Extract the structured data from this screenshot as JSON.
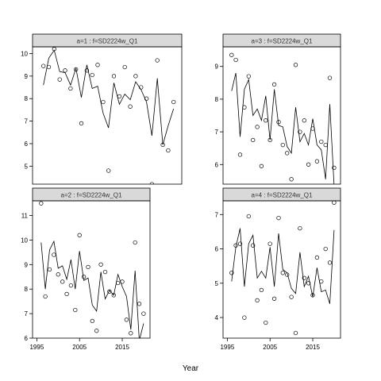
{
  "chart_data": {
    "type": "scatter",
    "xlabel": "Year",
    "xticks": [
      1995,
      2005,
      2015
    ],
    "xlim": [
      1994,
      2021.5
    ],
    "panels": [
      {
        "id": "a1",
        "strip": "a=1  :  f=SD2224w_Q1",
        "ylim": [
          4.2,
          10.3
        ],
        "yticks": [
          5,
          6,
          7,
          8,
          9,
          10
        ],
        "points": [
          [
            1996,
            9.45
          ],
          [
            1997,
            9.4
          ],
          [
            1998,
            10.2
          ],
          [
            1999,
            8.85
          ],
          [
            2000,
            9.25
          ],
          [
            2001,
            8.45
          ],
          [
            2002,
            9.3
          ],
          [
            2003,
            6.9
          ],
          [
            2004,
            9.25
          ],
          [
            2005,
            9.05
          ],
          [
            2006,
            9.5
          ],
          [
            2007,
            7.85
          ],
          [
            2008,
            4.8
          ],
          [
            2009,
            9.0
          ],
          [
            2010,
            8.1
          ],
          [
            2011,
            9.4
          ],
          [
            2012,
            7.65
          ],
          [
            2013,
            9.0
          ],
          [
            2014,
            8.5
          ],
          [
            2015,
            8.0
          ],
          [
            2016,
            4.2
          ],
          [
            2017,
            9.7
          ],
          [
            2018,
            5.95
          ],
          [
            2019,
            5.7
          ],
          [
            2020,
            7.85
          ]
        ],
        "fitted": [
          [
            1996,
            8.6
          ],
          [
            1997,
            9.8
          ],
          [
            1998,
            10.15
          ],
          [
            1999,
            9.2
          ],
          [
            2000,
            9.15
          ],
          [
            2001,
            8.6
          ],
          [
            2002,
            9.35
          ],
          [
            2003,
            8.05
          ],
          [
            2004,
            9.5
          ],
          [
            2005,
            8.45
          ],
          [
            2006,
            8.55
          ],
          [
            2007,
            7.35
          ],
          [
            2008,
            6.7
          ],
          [
            2009,
            8.7
          ],
          [
            2010,
            7.75
          ],
          [
            2011,
            8.2
          ],
          [
            2012,
            7.95
          ],
          [
            2013,
            8.75
          ],
          [
            2014,
            8.4
          ],
          [
            2015,
            7.85
          ],
          [
            2016,
            6.35
          ],
          [
            2017,
            8.9
          ],
          [
            2018,
            5.95
          ],
          [
            2019,
            6.8
          ],
          [
            2020,
            7.55
          ]
        ]
      },
      {
        "id": "a3",
        "strip": "a=3  :  f=SD2224w_Q1",
        "ylim": [
          5.4,
          9.6
        ],
        "yticks": [
          6,
          7,
          8,
          9
        ],
        "points": [
          [
            1996,
            9.35
          ],
          [
            1997,
            9.2
          ],
          [
            1998,
            6.3
          ],
          [
            1999,
            7.75
          ],
          [
            2000,
            8.7
          ],
          [
            2001,
            6.75
          ],
          [
            2002,
            7.15
          ],
          [
            2003,
            5.95
          ],
          [
            2004,
            7.35
          ],
          [
            2005,
            6.75
          ],
          [
            2006,
            8.45
          ],
          [
            2007,
            7.3
          ],
          [
            2008,
            6.6
          ],
          [
            2009,
            6.35
          ],
          [
            2010,
            5.55
          ],
          [
            2011,
            9.05
          ],
          [
            2012,
            7.0
          ],
          [
            2013,
            7.35
          ],
          [
            2014,
            6.0
          ],
          [
            2015,
            7.1
          ],
          [
            2016,
            6.1
          ],
          [
            2017,
            6.7
          ],
          [
            2018,
            6.6
          ],
          [
            2019,
            8.65
          ],
          [
            2020,
            5.9
          ]
        ],
        "fitted": [
          [
            1996,
            8.25
          ],
          [
            1997,
            8.8
          ],
          [
            1998,
            6.85
          ],
          [
            1999,
            8.3
          ],
          [
            2000,
            8.6
          ],
          [
            2001,
            7.5
          ],
          [
            2002,
            7.7
          ],
          [
            2003,
            7.35
          ],
          [
            2004,
            8.1
          ],
          [
            2005,
            6.75
          ],
          [
            2006,
            8.3
          ],
          [
            2007,
            7.2
          ],
          [
            2008,
            7.15
          ],
          [
            2009,
            6.55
          ],
          [
            2010,
            6.35
          ],
          [
            2011,
            7.75
          ],
          [
            2012,
            6.7
          ],
          [
            2013,
            6.95
          ],
          [
            2014,
            6.6
          ],
          [
            2015,
            7.4
          ],
          [
            2016,
            6.6
          ],
          [
            2017,
            6.45
          ],
          [
            2018,
            5.55
          ],
          [
            2019,
            7.85
          ],
          [
            2020,
            5.35
          ]
        ]
      },
      {
        "id": "a2",
        "strip": "a=2  :  f=SD2224w_Q1",
        "ylim": [
          6.0,
          11.6
        ],
        "yticks": [
          6,
          7,
          8,
          9,
          10,
          11
        ],
        "points": [
          [
            1996,
            11.5
          ],
          [
            1997,
            7.7
          ],
          [
            1998,
            8.8
          ],
          [
            1999,
            9.4
          ],
          [
            2000,
            8.6
          ],
          [
            2001,
            8.3
          ],
          [
            2002,
            7.8
          ],
          [
            2003,
            8.15
          ],
          [
            2004,
            7.15
          ],
          [
            2005,
            10.2
          ],
          [
            2006,
            8.5
          ],
          [
            2007,
            8.9
          ],
          [
            2008,
            6.7
          ],
          [
            2009,
            6.3
          ],
          [
            2010,
            9.0
          ],
          [
            2011,
            8.7
          ],
          [
            2012,
            7.9
          ],
          [
            2013,
            7.75
          ],
          [
            2014,
            8.25
          ],
          [
            2015,
            8.3
          ],
          [
            2016,
            6.75
          ],
          [
            2017,
            6.2
          ],
          [
            2018,
            9.9
          ],
          [
            2019,
            7.4
          ],
          [
            2020,
            7.0
          ]
        ],
        "fitted": [
          [
            1996,
            9.9
          ],
          [
            1997,
            8.0
          ],
          [
            1998,
            9.6
          ],
          [
            1999,
            9.95
          ],
          [
            2000,
            8.85
          ],
          [
            2001,
            8.95
          ],
          [
            2002,
            8.4
          ],
          [
            2003,
            9.2
          ],
          [
            2004,
            8.0
          ],
          [
            2005,
            9.55
          ],
          [
            2006,
            8.35
          ],
          [
            2007,
            8.45
          ],
          [
            2008,
            7.35
          ],
          [
            2009,
            7.1
          ],
          [
            2010,
            8.7
          ],
          [
            2011,
            7.6
          ],
          [
            2012,
            7.95
          ],
          [
            2013,
            7.75
          ],
          [
            2014,
            8.6
          ],
          [
            2015,
            8.1
          ],
          [
            2016,
            7.7
          ],
          [
            2017,
            6.35
          ],
          [
            2018,
            8.75
          ],
          [
            2019,
            5.9
          ],
          [
            2020,
            6.6
          ]
        ]
      },
      {
        "id": "a4",
        "strip": "a=4  :  f=SD2224w_Q1",
        "ylim": [
          3.4,
          7.4
        ],
        "yticks": [
          4,
          5,
          6,
          7
        ],
        "points": [
          [
            1996,
            5.3
          ],
          [
            1997,
            6.1
          ],
          [
            1998,
            6.15
          ],
          [
            1999,
            4.0
          ],
          [
            2000,
            6.95
          ],
          [
            2001,
            6.1
          ],
          [
            2002,
            4.5
          ],
          [
            2003,
            4.8
          ],
          [
            2004,
            3.85
          ],
          [
            2005,
            6.15
          ],
          [
            2006,
            4.55
          ],
          [
            2007,
            6.9
          ],
          [
            2008,
            5.3
          ],
          [
            2009,
            5.25
          ],
          [
            2010,
            4.6
          ],
          [
            2011,
            3.55
          ],
          [
            2012,
            6.6
          ],
          [
            2013,
            5.15
          ],
          [
            2014,
            5.0
          ],
          [
            2015,
            4.65
          ],
          [
            2016,
            5.75
          ],
          [
            2017,
            5.05
          ],
          [
            2018,
            6.0
          ],
          [
            2019,
            5.6
          ],
          [
            2020,
            7.35
          ]
        ],
        "fitted": [
          [
            1996,
            5.05
          ],
          [
            1997,
            6.05
          ],
          [
            1998,
            6.6
          ],
          [
            1999,
            4.9
          ],
          [
            2000,
            6.15
          ],
          [
            2001,
            6.4
          ],
          [
            2002,
            5.15
          ],
          [
            2003,
            5.35
          ],
          [
            2004,
            5.15
          ],
          [
            2005,
            6.05
          ],
          [
            2006,
            4.9
          ],
          [
            2007,
            6.45
          ],
          [
            2008,
            5.4
          ],
          [
            2009,
            5.3
          ],
          [
            2010,
            4.85
          ],
          [
            2011,
            4.7
          ],
          [
            2012,
            5.9
          ],
          [
            2013,
            4.9
          ],
          [
            2014,
            5.2
          ],
          [
            2015,
            4.6
          ],
          [
            2016,
            5.45
          ],
          [
            2017,
            4.75
          ],
          [
            2018,
            4.8
          ],
          [
            2019,
            4.4
          ],
          [
            2020,
            6.55
          ]
        ]
      }
    ]
  }
}
